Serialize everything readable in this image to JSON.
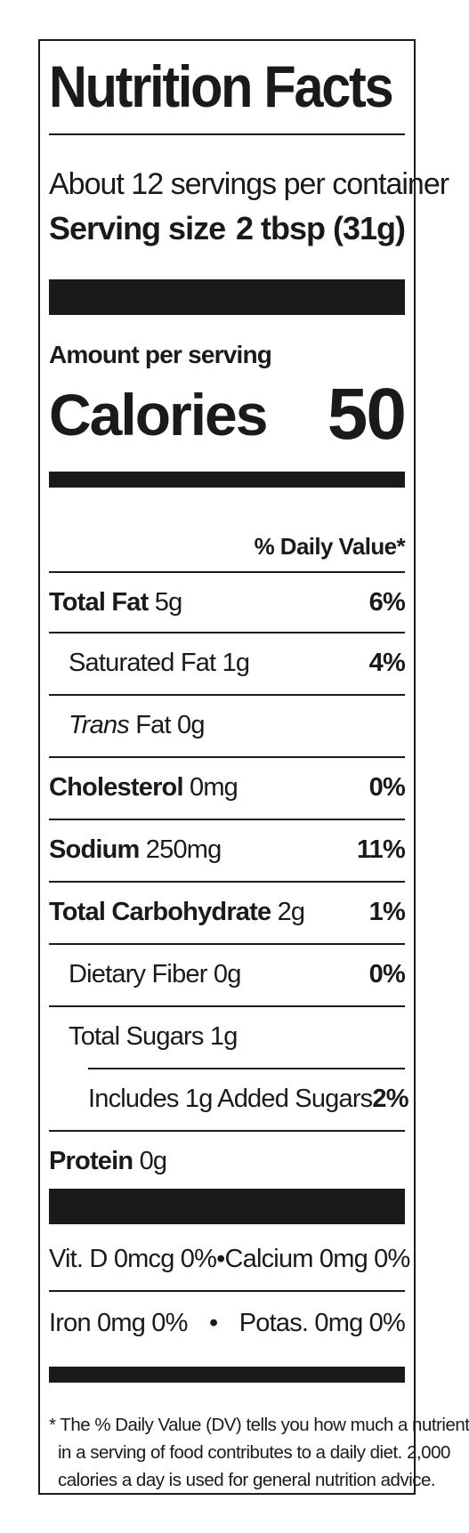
{
  "title": "Nutrition Facts",
  "servings_per_container": "About 12 servings per container",
  "serving_size": {
    "label": "Serving size",
    "value": "2 tbsp (31g)"
  },
  "amount_per_serving": "Amount per serving",
  "calories": {
    "label": "Calories",
    "value": "50"
  },
  "daily_value_header": "% Daily Value*",
  "nutrients": [
    {
      "name": "Total Fat",
      "amount": "5g",
      "dv": "6%"
    },
    {
      "name": "Saturated Fat",
      "amount": "1g",
      "dv": "4%"
    },
    {
      "name": "Trans",
      "name_suffix": "Fat",
      "amount": "0g",
      "dv": ""
    },
    {
      "name": "Cholesterol",
      "amount": "0mg",
      "dv": "0%"
    },
    {
      "name": "Sodium",
      "amount": "250mg",
      "dv": "11%"
    },
    {
      "name": "Total Carbohydrate",
      "amount": "2g",
      "dv": "1%"
    },
    {
      "name": "Dietary Fiber",
      "amount": "0g",
      "dv": "0%"
    },
    {
      "name": "Total Sugars",
      "amount": "1g",
      "dv": ""
    },
    {
      "name": "Includes 1g Added Sugars",
      "amount": "",
      "dv": "2%"
    },
    {
      "name": "Protein",
      "amount": "0g",
      "dv": ""
    }
  ],
  "vitamins": [
    {
      "left": "Vit. D 0mcg 0%",
      "separator": "•",
      "right": "Calcium 0mg 0%"
    },
    {
      "left": "Iron 0mg 0%",
      "separator": "•",
      "right": "Potas. 0mg 0%"
    }
  ],
  "footnote": [
    "* The % Daily Value (DV) tells you how much a nutrient",
    "in a serving of food contributes to a daily diet. 2,000",
    "calories a day is used for general nutrition advice."
  ]
}
